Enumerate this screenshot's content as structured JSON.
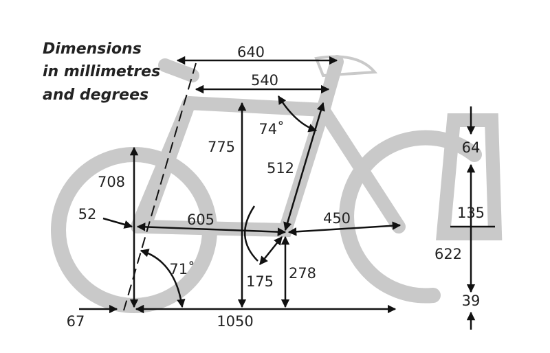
{
  "title": [
    "Dimensions",
    "in millimetres",
    "and degrees"
  ],
  "dimensions": [
    "640",
    "540",
    "775",
    "74˚",
    "512",
    "708",
    "52",
    "605",
    "450",
    "71˚",
    "175",
    "278",
    "67",
    "1050"
  ],
  "fork_dimensions": [
    "64",
    "135",
    "622",
    "39"
  ]
}
